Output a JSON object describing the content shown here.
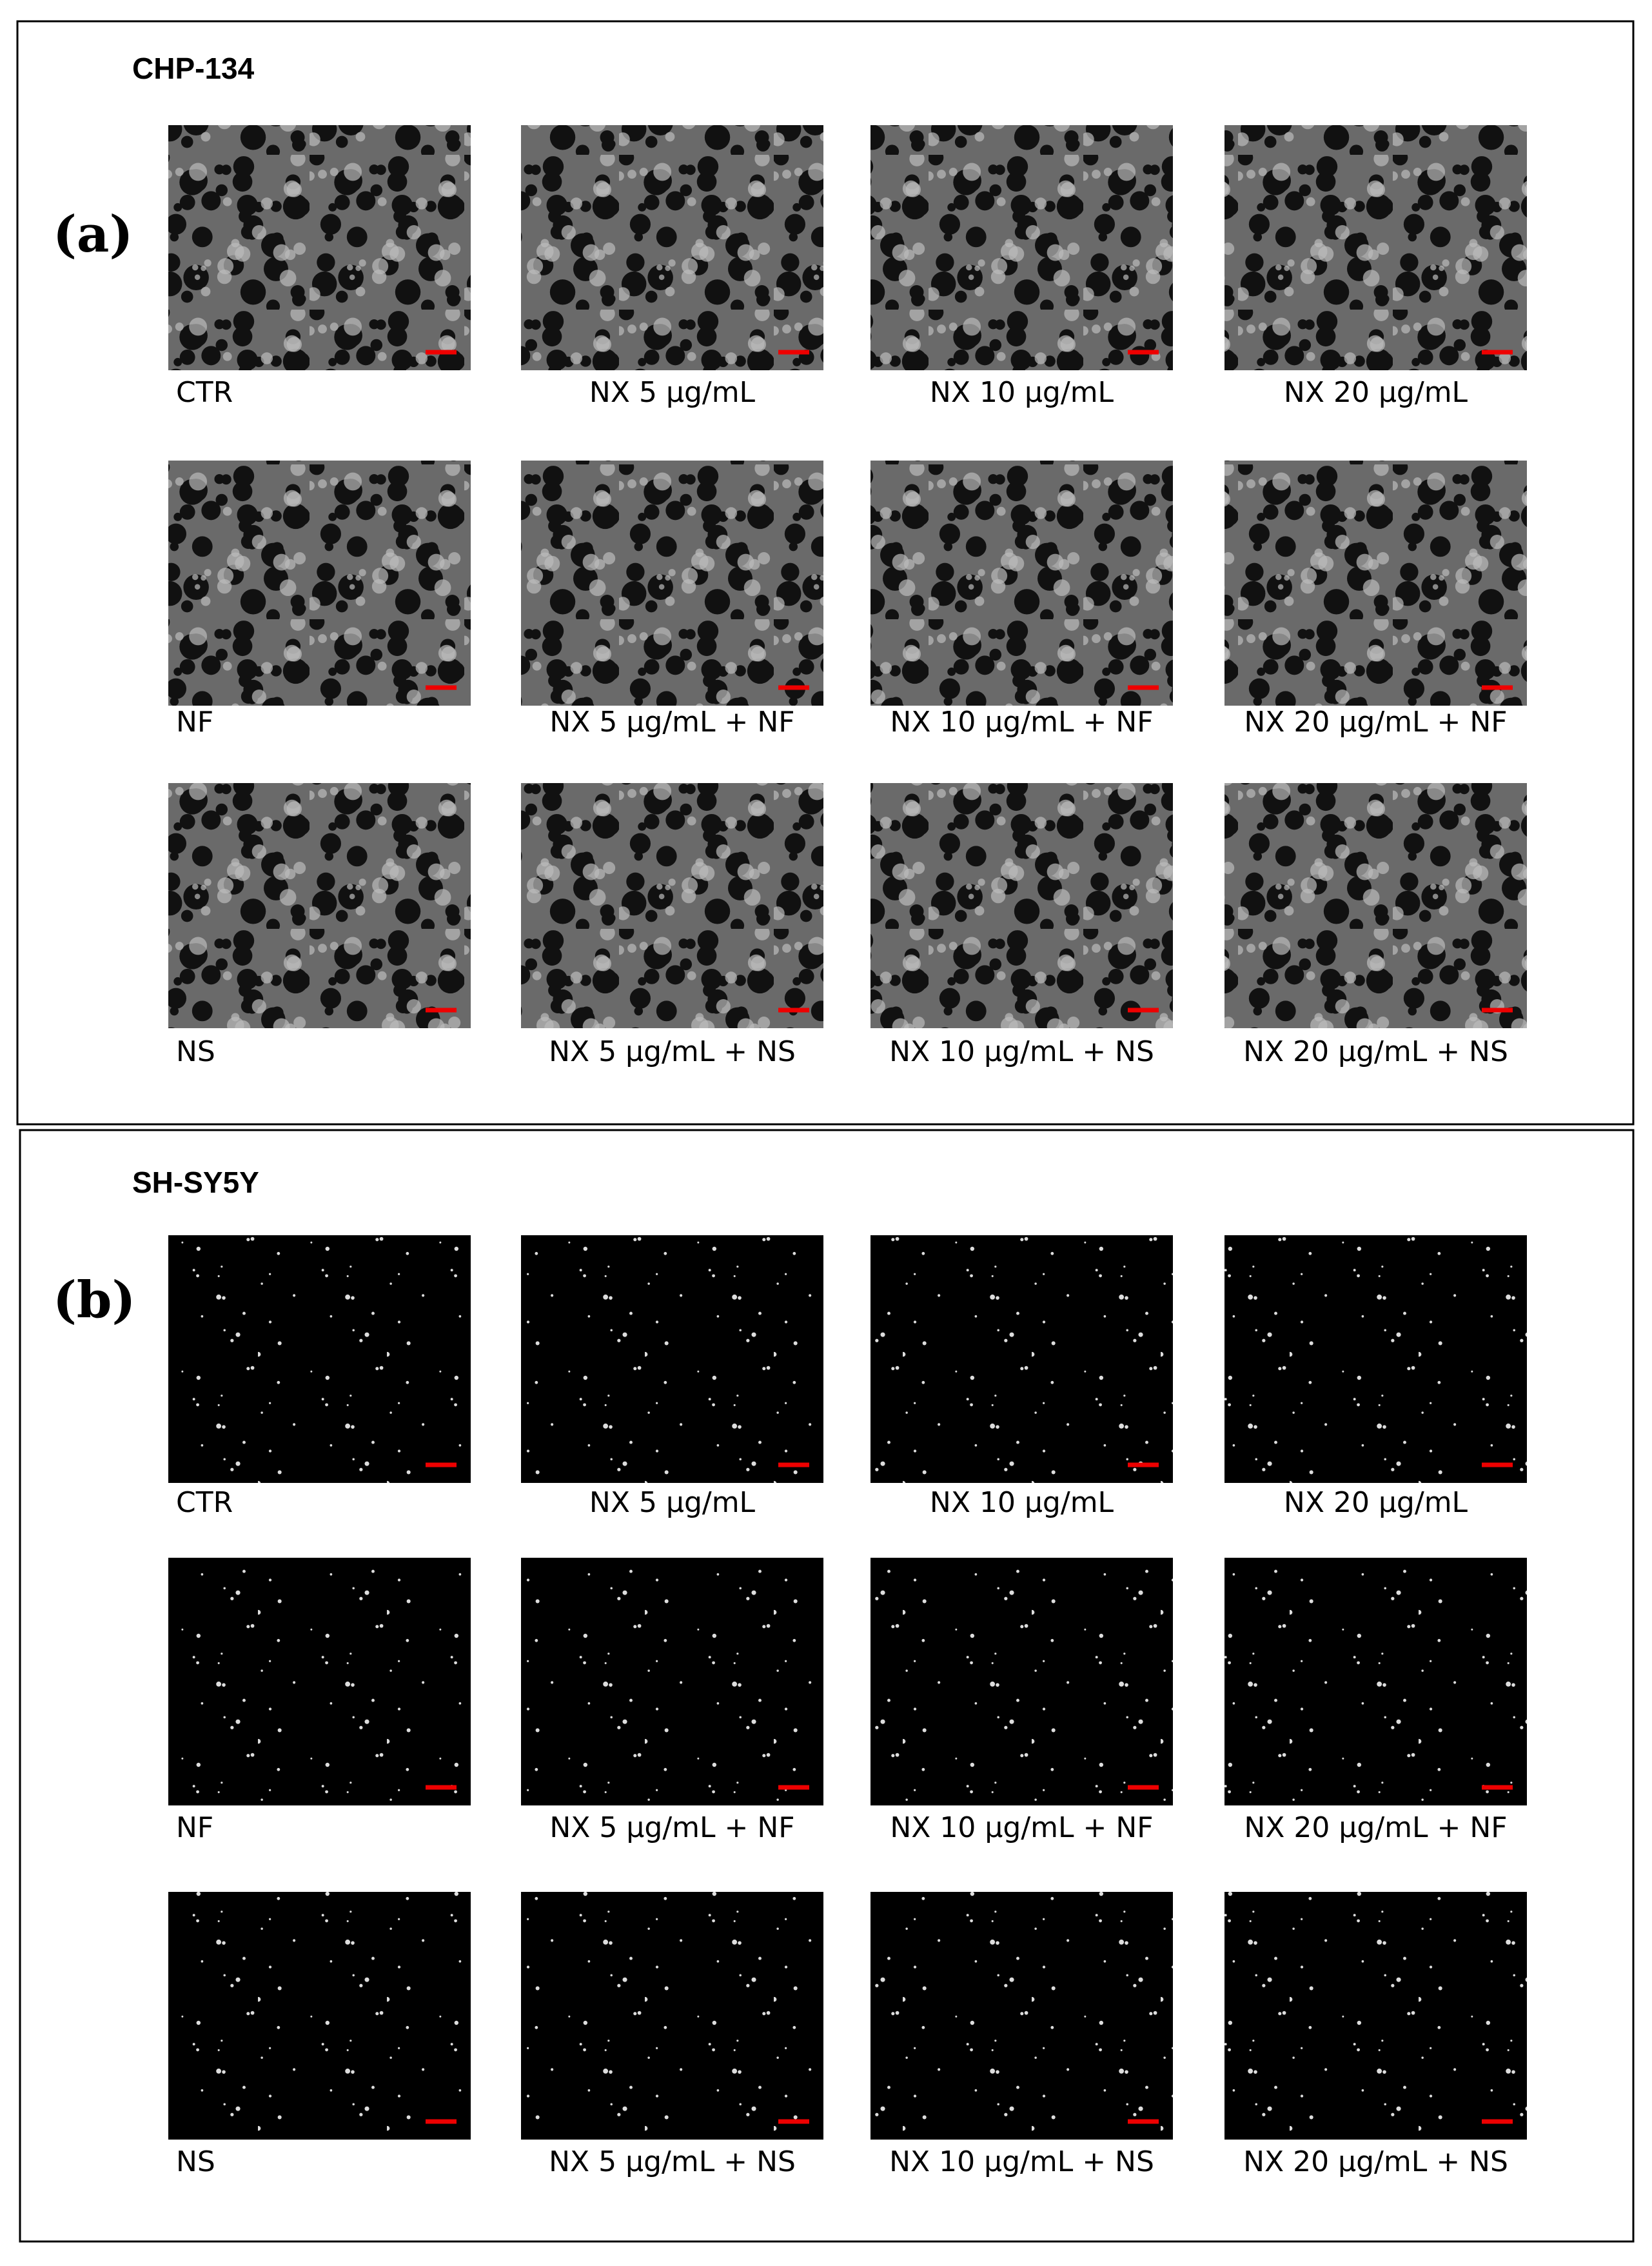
{
  "panels": [
    {
      "label": "(a)",
      "title": "CHP-134",
      "rows": [
        [
          "CTR",
          "NX 5 μg/mL",
          "NX 10 μg/mL",
          "NX 20 μg/mL"
        ],
        [
          "NF",
          "NX 5 μg/mL + NF",
          "NX 10 μg/mL + NF",
          "NX 20 μg/mL + NF"
        ],
        [
          "NS",
          "NX 5 μg/mL + NS",
          "NX 10 μg/mL + NS",
          "NX 20 μg/mL + NS"
        ]
      ]
    },
    {
      "label": "(b)",
      "title": "SH-SY5Y",
      "rows": [
        [
          "CTR",
          "NX 5 μg/mL",
          "NX 10 μg/mL",
          "NX 20 μg/mL"
        ],
        [
          "NF",
          "NX 5 μg/mL + NF",
          "NX 10 μg/mL + NF",
          "NX 20 μg/mL + NF"
        ],
        [
          "NS",
          "NX 5 μg/mL + NS",
          "NX 10 μg/mL + NS",
          "NX 20 μg/mL + NS"
        ]
      ]
    }
  ]
}
